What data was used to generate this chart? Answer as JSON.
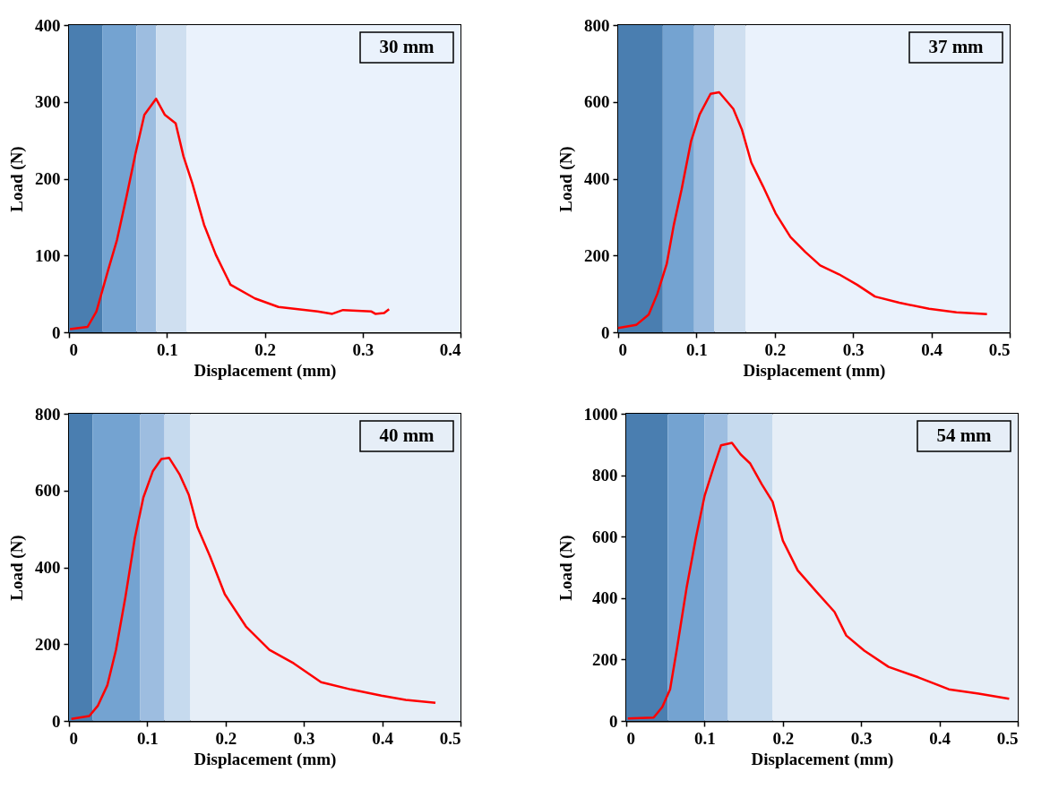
{
  "chart_data": [
    {
      "type": "line",
      "xlabel": "Displacement (mm)",
      "ylabel": "Load (N)",
      "annotations": [
        "30 mm"
      ],
      "grid": false,
      "xlim": [
        0,
        0.4
      ],
      "ylim": [
        0,
        400
      ],
      "xticks": [
        0,
        0.1,
        0.2,
        0.3,
        0.4
      ],
      "yticks": [
        0,
        100,
        200,
        300,
        400
      ],
      "x": [
        0.001,
        0.019,
        0.028,
        0.04,
        0.049,
        0.059,
        0.068,
        0.077,
        0.089,
        0.098,
        0.109,
        0.117,
        0.126,
        0.138,
        0.15,
        0.165,
        0.19,
        0.214,
        0.254,
        0.269,
        0.28,
        0.309,
        0.313,
        0.322,
        0.327
      ],
      "series": [
        {
          "color": "#ff0000",
          "values": [
            4,
            7,
            27,
            81,
            120,
            178,
            233,
            283,
            304,
            283,
            272,
            229,
            194,
            140,
            101,
            62,
            44,
            33,
            27,
            24,
            29,
            27,
            24,
            25,
            30
          ]
        }
      ],
      "bands": [
        {
          "axis": "x",
          "from": 0,
          "to": 0.034,
          "color": "#4a7eb0"
        },
        {
          "axis": "x",
          "from": 0.034,
          "to": 0.069,
          "color": "#74a3d1"
        },
        {
          "axis": "x",
          "from": 0.069,
          "to": 0.089,
          "color": "#9dbde0"
        },
        {
          "axis": "x",
          "from": 0.089,
          "to": 0.12,
          "color": "#cfdff0"
        },
        {
          "axis": "x",
          "from": 0.12,
          "to": 0.4,
          "color": "#eaf2fc"
        }
      ]
    },
    {
      "type": "line",
      "xlabel": "Displacement (mm)",
      "ylabel": "Load (N)",
      "annotations": [
        "37 mm"
      ],
      "grid": false,
      "xlim": [
        0,
        0.5
      ],
      "ylim": [
        0,
        800
      ],
      "xticks": [
        0,
        0.1,
        0.2,
        0.3,
        0.4,
        0.5
      ],
      "yticks": [
        0,
        200,
        400,
        600,
        800
      ],
      "x": [
        0.0,
        0.023,
        0.039,
        0.05,
        0.062,
        0.071,
        0.081,
        0.093,
        0.104,
        0.118,
        0.129,
        0.147,
        0.158,
        0.17,
        0.185,
        0.201,
        0.22,
        0.239,
        0.258,
        0.282,
        0.305,
        0.328,
        0.359,
        0.397,
        0.432,
        0.471
      ],
      "series": [
        {
          "color": "#ff0000",
          "values": [
            11,
            19,
            46,
            100,
            178,
            279,
            372,
            497,
            567,
            621,
            625,
            582,
            528,
            442,
            380,
            310,
            248,
            209,
            174,
            151,
            124,
            93,
            77,
            61,
            52,
            47
          ]
        }
      ],
      "bands": [
        {
          "axis": "x",
          "from": 0,
          "to": 0.057,
          "color": "#4a7eb0"
        },
        {
          "axis": "x",
          "from": 0.057,
          "to": 0.097,
          "color": "#74a3d1"
        },
        {
          "axis": "x",
          "from": 0.097,
          "to": 0.123,
          "color": "#9dbde0"
        },
        {
          "axis": "x",
          "from": 0.123,
          "to": 0.163,
          "color": "#cfdff0"
        },
        {
          "axis": "x",
          "from": 0.163,
          "to": 0.5,
          "color": "#eaf2fc"
        }
      ]
    },
    {
      "type": "line",
      "xlabel": "Displacement (mm)",
      "ylabel": "Load (N)",
      "annotations": [
        "40 mm"
      ],
      "grid": false,
      "xlim": [
        0,
        0.5
      ],
      "ylim": [
        0,
        800
      ],
      "xticks": [
        0,
        0.1,
        0.2,
        0.3,
        0.4,
        0.5
      ],
      "yticks": [
        0,
        200,
        400,
        600,
        800
      ],
      "x": [
        0.003,
        0.026,
        0.037,
        0.049,
        0.06,
        0.072,
        0.084,
        0.095,
        0.107,
        0.118,
        0.128,
        0.141,
        0.153,
        0.164,
        0.18,
        0.199,
        0.226,
        0.256,
        0.287,
        0.322,
        0.36,
        0.399,
        0.43,
        0.468
      ],
      "series": [
        {
          "color": "#ff0000",
          "values": [
            5,
            13,
            40,
            93,
            185,
            322,
            475,
            582,
            650,
            682,
            685,
            643,
            589,
            505,
            429,
            330,
            246,
            185,
            150,
            101,
            82,
            66,
            55,
            47
          ]
        }
      ],
      "bands": [
        {
          "axis": "x",
          "from": 0,
          "to": 0.03,
          "color": "#4a7eb0"
        },
        {
          "axis": "x",
          "from": 0.03,
          "to": 0.091,
          "color": "#74a3d1"
        },
        {
          "axis": "x",
          "from": 0.091,
          "to": 0.122,
          "color": "#9dbde0"
        },
        {
          "axis": "x",
          "from": 0.122,
          "to": 0.155,
          "color": "#c6daee"
        },
        {
          "axis": "x",
          "from": 0.155,
          "to": 0.5,
          "color": "#e6eef7"
        }
      ]
    },
    {
      "type": "line",
      "xlabel": "Displacement (mm)",
      "ylabel": "Load (N)",
      "annotations": [
        "54 mm"
      ],
      "grid": false,
      "xlim": [
        0,
        0.5
      ],
      "ylim": [
        0,
        1000
      ],
      "xticks": [
        0,
        0.1,
        0.2,
        0.3,
        0.4,
        0.5
      ],
      "yticks": [
        0,
        200,
        400,
        600,
        800,
        1000
      ],
      "x": [
        0.002,
        0.035,
        0.046,
        0.056,
        0.065,
        0.077,
        0.089,
        0.1,
        0.112,
        0.121,
        0.135,
        0.146,
        0.158,
        0.173,
        0.187,
        0.2,
        0.219,
        0.242,
        0.266,
        0.281,
        0.304,
        0.335,
        0.373,
        0.412,
        0.45,
        0.489
      ],
      "series": [
        {
          "color": "#ff0000",
          "values": [
            8,
            11,
            45,
            103,
            239,
            432,
            597,
            732,
            829,
            897,
            905,
            868,
            839,
            771,
            713,
            587,
            490,
            423,
            355,
            278,
            229,
            176,
            142,
            103,
            89,
            72
          ]
        }
      ],
      "bands": [
        {
          "axis": "x",
          "from": 0,
          "to": 0.053,
          "color": "#4a7eb0"
        },
        {
          "axis": "x",
          "from": 0.053,
          "to": 0.1,
          "color": "#74a3d1"
        },
        {
          "axis": "x",
          "from": 0.1,
          "to": 0.13,
          "color": "#9dbde0"
        },
        {
          "axis": "x",
          "from": 0.13,
          "to": 0.187,
          "color": "#c6daee"
        },
        {
          "axis": "x",
          "from": 0.187,
          "to": 0.5,
          "color": "#e6eef7"
        }
      ]
    }
  ]
}
